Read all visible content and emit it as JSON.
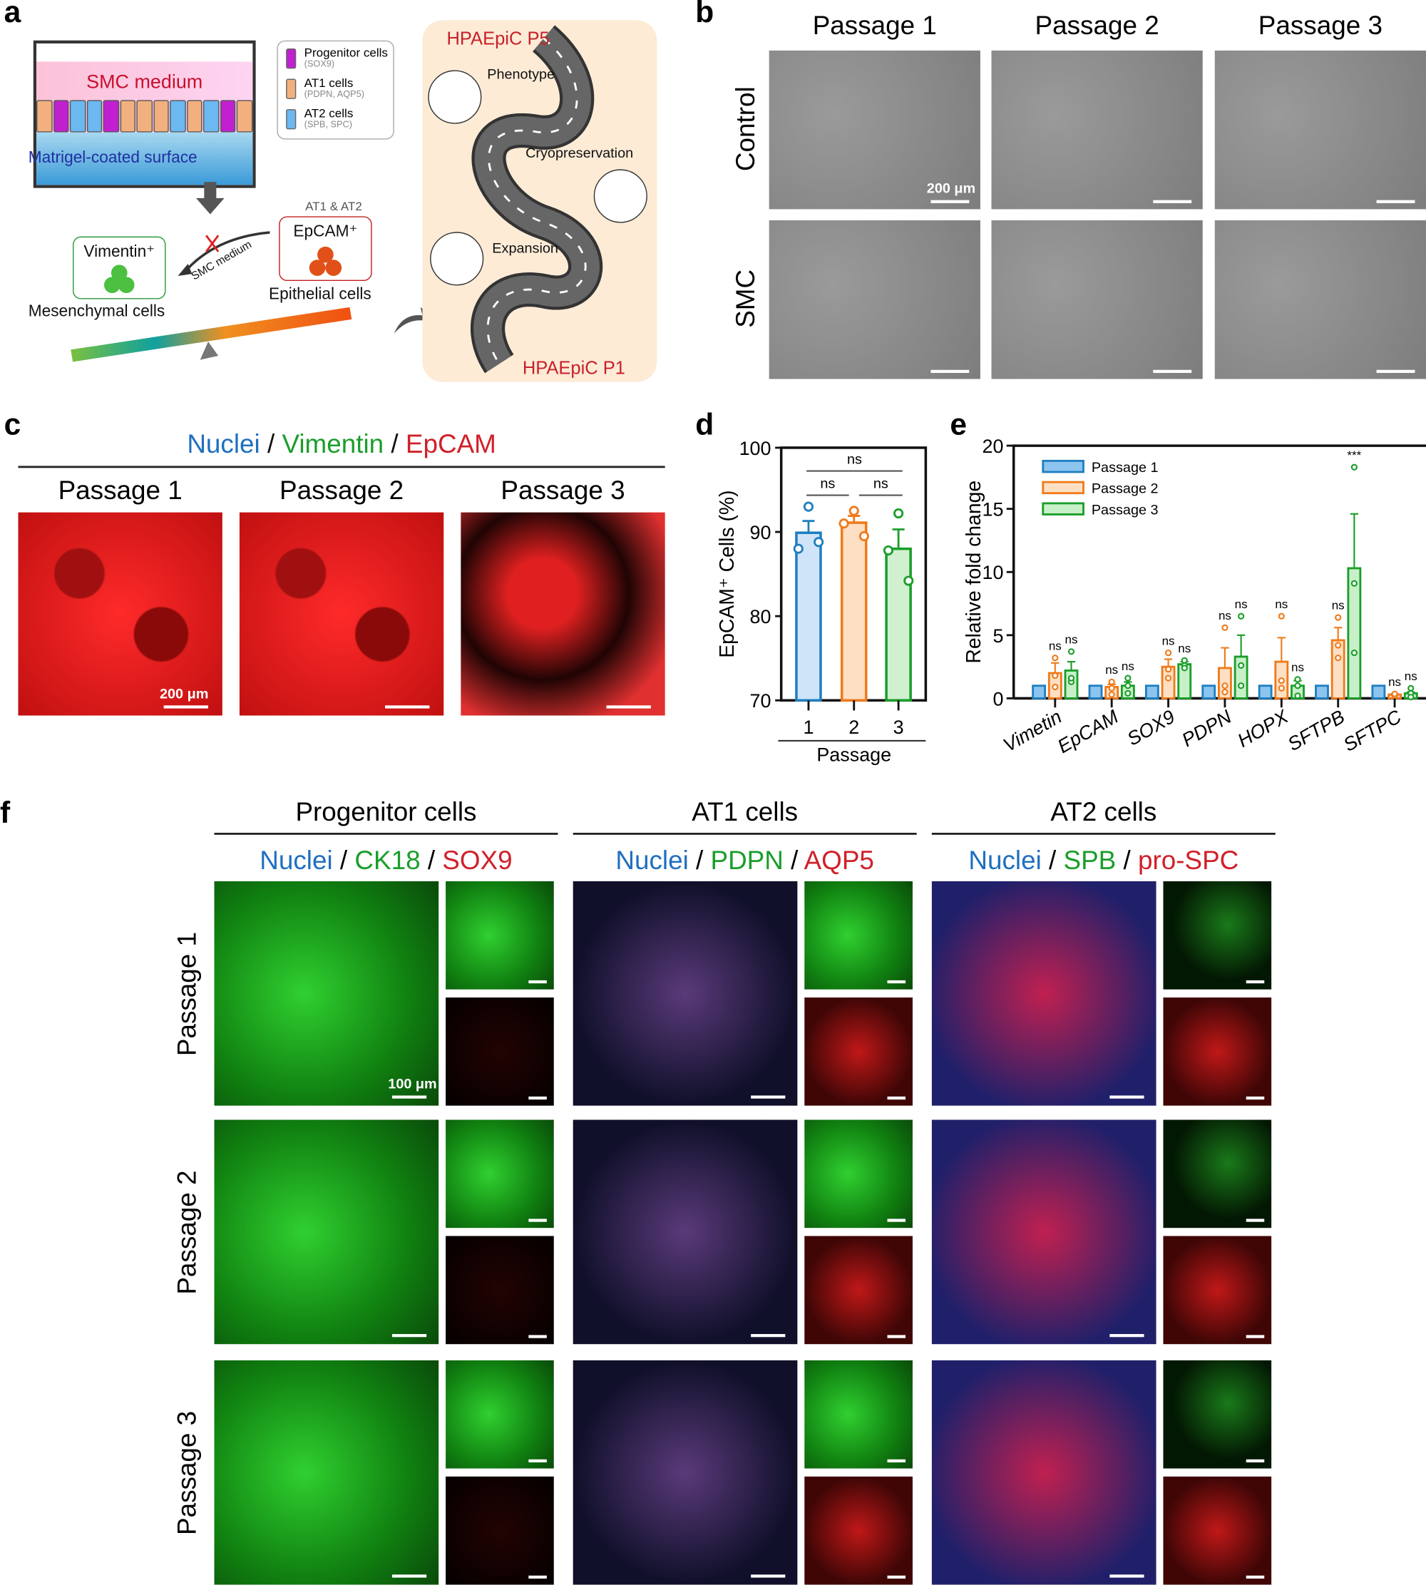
{
  "panels": {
    "a": "a",
    "b": "b",
    "c": "c",
    "d": "d",
    "e": "e",
    "f": "f"
  },
  "panel_a": {
    "smc_medium": "SMC medium",
    "surface": "Matrigel-coated surface",
    "legend": [
      {
        "name": "Progenitor cells",
        "markers": "(SOX9)",
        "color": "#c020d0"
      },
      {
        "name": "AT1 cells",
        "markers": "(PDPN, AQP5)",
        "color": "#f2b07e"
      },
      {
        "name": "AT2 cells",
        "markers": "(SPB, SPC)",
        "color": "#6cb8f0"
      }
    ],
    "vimentin": "Vimentin⁺",
    "mesenchymal": "Mesenchymal cells",
    "smc_arrow": "SMC medium",
    "at1_at2": "AT1 & AT2",
    "epcam": "EpCAM⁺",
    "epithelial": "Epithelial cells",
    "road_top": "HPAEpiC P5",
    "road_bottom": "HPAEpiC P1",
    "phenotype": "Phenotype",
    "cryo": "Cryopreservation",
    "expansion": "Expansion"
  },
  "panel_b": {
    "columns": [
      "Passage 1",
      "Passage 2",
      "Passage 3"
    ],
    "rows": [
      "Control",
      "SMC"
    ],
    "scale": "200 μm"
  },
  "panel_c": {
    "title": {
      "nuclei": "Nuclei",
      "vimentin": "Vimentin",
      "epcam": "EpCAM",
      "sep": " / "
    },
    "columns": [
      "Passage 1",
      "Passage 2",
      "Passage 3"
    ],
    "scale": "200 μm"
  },
  "colors": {
    "p1": "#1f7fbf",
    "p2": "#f07a1a",
    "p3": "#1a9e2a",
    "nuclei": "#1f6fc0",
    "green": "#1a9e2a",
    "red": "#d0202a"
  },
  "chart_data": [
    {
      "type": "bar",
      "panel": "d",
      "ylabel": "EpCAM⁺ Cells (%)",
      "xlabel": "Passage",
      "categories": [
        "1",
        "2",
        "3"
      ],
      "ylim": [
        70,
        100
      ],
      "yticks": [
        70,
        80,
        90,
        100
      ],
      "values": [
        89.9,
        91.1,
        88.0
      ],
      "sem_top": [
        91.3,
        91.9,
        90.3
      ],
      "points": [
        [
          93.0,
          88.0,
          88.8
        ],
        [
          92.5,
          91.0,
          89.5
        ],
        [
          92.2,
          87.8,
          84.2
        ]
      ],
      "significance": [
        {
          "pair": "1-3",
          "label": "ns"
        },
        {
          "pair": "1-2",
          "label": "ns"
        },
        {
          "pair": "2-3",
          "label": "ns"
        }
      ]
    },
    {
      "type": "bar",
      "panel": "e",
      "ylabel": "Relative fold change",
      "categories": [
        "Vimetin",
        "EpCAM",
        "SOX9",
        "PDPN",
        "HOPX",
        "SFTPB",
        "SFTPC"
      ],
      "ylim": [
        0,
        20
      ],
      "yticks": [
        0,
        5,
        10,
        15,
        20
      ],
      "legend": "top-left",
      "series": [
        {
          "name": "Passage 1",
          "values": [
            1,
            1,
            1,
            1,
            1,
            1,
            1
          ],
          "err_top": [
            1,
            1,
            1,
            1,
            1,
            1,
            1
          ],
          "sig": [
            "",
            "",
            "",
            "",
            "",
            "",
            ""
          ]
        },
        {
          "name": "Passage 2",
          "values": [
            2.0,
            0.9,
            2.5,
            2.4,
            2.9,
            4.6,
            0.3
          ],
          "err_top": [
            2.8,
            1.1,
            3.1,
            4.0,
            4.8,
            5.6,
            0.35
          ],
          "points": [
            [
              3.2,
              0.9,
              1.8
            ],
            [
              1.3,
              0.8,
              0.3
            ],
            [
              3.6,
              2.3,
              1.6
            ],
            [
              5.6,
              1.0,
              0.5
            ],
            [
              6.5,
              1.4,
              0.8
            ],
            [
              6.4,
              4.2,
              3.2
            ],
            [
              0.3,
              0.2,
              0.35
            ]
          ],
          "sig": [
            "ns",
            "ns",
            "ns",
            "ns",
            "ns",
            "ns",
            "ns"
          ]
        },
        {
          "name": "Passage 3",
          "values": [
            2.2,
            1.0,
            2.7,
            3.3,
            1.0,
            10.3,
            0.4
          ],
          "err_top": [
            2.9,
            1.3,
            2.9,
            5.0,
            1.4,
            14.6,
            0.5
          ],
          "points": [
            [
              3.7,
              1.3,
              1.6
            ],
            [
              1.6,
              1.0,
              0.4
            ],
            [
              3.0,
              2.6,
              2.4
            ],
            [
              6.5,
              2.6,
              1.0
            ],
            [
              1.5,
              1.0,
              0.2
            ],
            [
              18.3,
              9.1,
              3.6
            ],
            [
              0.8,
              0.4,
              0.1
            ]
          ],
          "sig": [
            "ns",
            "ns",
            "ns",
            "ns",
            "ns",
            "***",
            "ns"
          ]
        }
      ]
    }
  ],
  "panel_f": {
    "groups": [
      {
        "title": "Progenitor cells",
        "stain": {
          "nuclei": "Nuclei",
          "green": "CK18",
          "red": "SOX9"
        }
      },
      {
        "title": "AT1 cells",
        "stain": {
          "nuclei": "Nuclei",
          "green": "PDPN",
          "red": "AQP5"
        }
      },
      {
        "title": "AT2 cells",
        "stain": {
          "nuclei": "Nuclei",
          "green": "SPB",
          "red": "pro-SPC"
        }
      }
    ],
    "rows": [
      "Passage 1",
      "Passage 2",
      "Passage 3"
    ],
    "scale": "100 μm",
    "sep": " / "
  }
}
